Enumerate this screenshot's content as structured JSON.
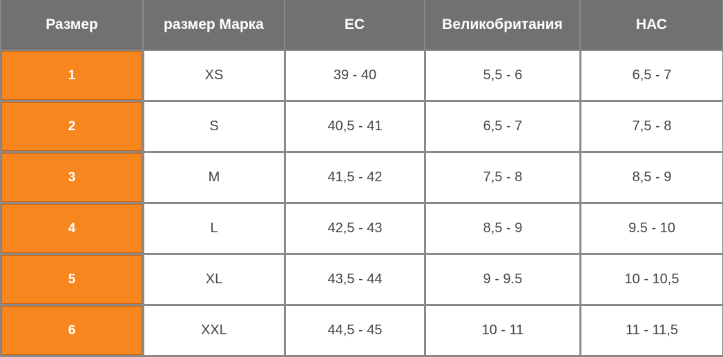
{
  "table": {
    "header": [
      "Размер",
      "размер Марка",
      "ЕС",
      "Великобритания",
      "НАС"
    ],
    "rows": [
      [
        "1",
        "XS",
        "39 - 40",
        "5,5 - 6",
        "6,5 - 7"
      ],
      [
        "2",
        "S",
        "40,5 - 41",
        "6,5 - 7",
        "7,5 - 8"
      ],
      [
        "3",
        "M",
        "41,5 - 42",
        "7,5 - 8",
        "8,5 - 9"
      ],
      [
        "4",
        "L",
        "42,5 - 43",
        "8,5 - 9",
        "9.5 - 10"
      ],
      [
        "5",
        "XL",
        "43,5 - 44",
        "9 - 9.5",
        "10 - 10,5"
      ],
      [
        "6",
        "XXL",
        "44,5 - 45",
        "10 - 11",
        "11 - 11,5"
      ]
    ]
  }
}
